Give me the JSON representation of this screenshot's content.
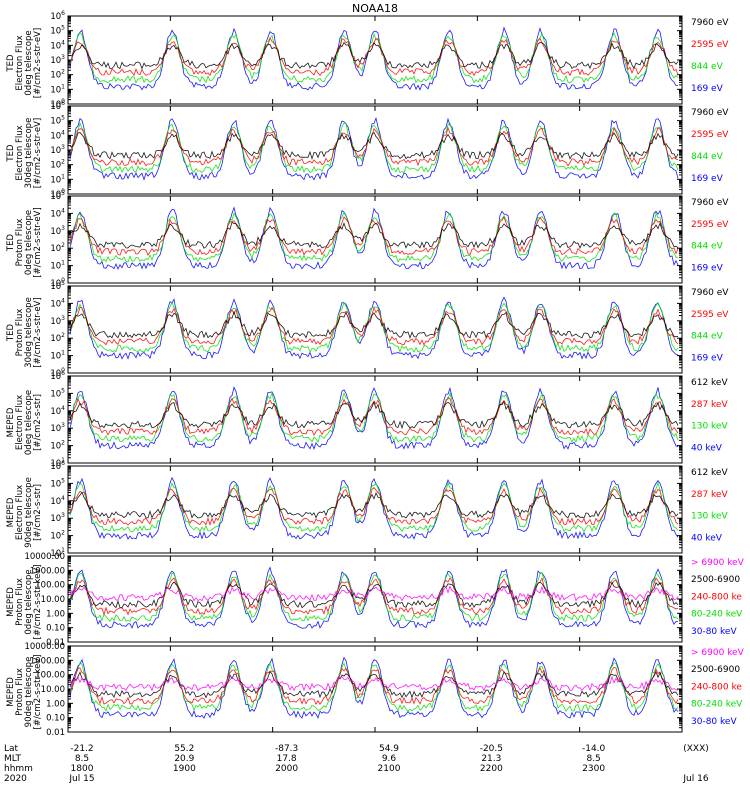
{
  "title": "NOAA18",
  "colors": {
    "blue": "#0000ff",
    "red": "#ff0000",
    "green": "#00e000",
    "black": "#000000",
    "magenta": "#ff00ff"
  },
  "chart_data": [
    {
      "type": "line",
      "ylabel": [
        "TED",
        "Electron Flux",
        "0deg telescope",
        "[#/cm2-s-str-eV]"
      ],
      "log": true,
      "ticks": [
        "10^0",
        "10^1",
        "10^2",
        "10^3",
        "10^4",
        "10^5",
        "10^6"
      ],
      "legend": [
        {
          "label": "7960 eV",
          "color": "black"
        },
        {
          "label": "2595 eV",
          "color": "red"
        },
        {
          "label": "844 eV",
          "color": "green"
        },
        {
          "label": "169 eV",
          "color": "blue"
        }
      ]
    },
    {
      "type": "line",
      "ylabel": [
        "TED",
        "Electron Flux",
        "30deg telescope",
        "[#/cm2-s-str-eV]"
      ],
      "log": true,
      "ticks": [
        "10^0",
        "10^1",
        "10^2",
        "10^3",
        "10^4",
        "10^5",
        "10^6"
      ],
      "legend": [
        {
          "label": "7960 eV",
          "color": "black"
        },
        {
          "label": "2595 eV",
          "color": "red"
        },
        {
          "label": "844 eV",
          "color": "green"
        },
        {
          "label": "169 eV",
          "color": "blue"
        }
      ]
    },
    {
      "type": "line",
      "ylabel": [
        "TED",
        "Proton Flux",
        "0deg telescope",
        "[#/cm2-s-str-eV]"
      ],
      "log": true,
      "ticks": [
        "10^0",
        "10^1",
        "10^2",
        "10^3",
        "10^4",
        "10^5"
      ],
      "legend": [
        {
          "label": "7960 eV",
          "color": "black"
        },
        {
          "label": "2595 eV",
          "color": "red"
        },
        {
          "label": "844 eV",
          "color": "green"
        },
        {
          "label": "169 eV",
          "color": "blue"
        }
      ]
    },
    {
      "type": "line",
      "ylabel": [
        "TED",
        "Proton Flux",
        "30deg telescope",
        "[#/cm2-s-str-eV]"
      ],
      "log": true,
      "ticks": [
        "10^0",
        "10^1",
        "10^2",
        "10^3",
        "10^4",
        "10^5"
      ],
      "legend": [
        {
          "label": "7960 eV",
          "color": "black"
        },
        {
          "label": "2595 eV",
          "color": "red"
        },
        {
          "label": "844 eV",
          "color": "green"
        },
        {
          "label": "169 eV",
          "color": "blue"
        }
      ]
    },
    {
      "type": "line",
      "ylabel": [
        "MEPED",
        "Electron Flux",
        "0deg telescope",
        "[#/cm2-s-str]"
      ],
      "log": true,
      "ticks": [
        "10^1",
        "10^2",
        "10^3",
        "10^4",
        "10^5",
        "10^6"
      ],
      "legend": [
        {
          "label": "612 keV",
          "color": "black"
        },
        {
          "label": "287 keV",
          "color": "red"
        },
        {
          "label": "130 keV",
          "color": "green"
        },
        {
          "label": "40 keV",
          "color": "blue"
        }
      ]
    },
    {
      "type": "line",
      "ylabel": [
        "MEPED",
        "Electron Flux",
        "90deg telescope",
        "[#/cm2-s-str]"
      ],
      "log": true,
      "ticks": [
        "10^1",
        "10^2",
        "10^3",
        "10^4",
        "10^5",
        "10^6"
      ],
      "legend": [
        {
          "label": "612 keV",
          "color": "black"
        },
        {
          "label": "287 keV",
          "color": "red"
        },
        {
          "label": "130 keV",
          "color": "green"
        },
        {
          "label": "40 keV",
          "color": "blue"
        }
      ]
    },
    {
      "type": "line",
      "ylabel": [
        "MEPED",
        "Proton Flux",
        "0deg telescope",
        "[#/cm2-s-str-keV]"
      ],
      "log": true,
      "ticks": [
        "0.01",
        "0.10",
        "1.00",
        "10.00",
        "100.00",
        "1000.00",
        "10000.00"
      ],
      "legend": [
        {
          "label": "> 6900 keV",
          "color": "magenta"
        },
        {
          "label": "2500-6900",
          "color": "black"
        },
        {
          "label": "240-800 ke",
          "color": "red"
        },
        {
          "label": "80-240 keV",
          "color": "green"
        },
        {
          "label": "30-80 keV",
          "color": "blue"
        }
      ]
    },
    {
      "type": "line",
      "ylabel": [
        "MEPED",
        "Proton Flux",
        "90deg telescope",
        "[#/cm2-s-str-keV]"
      ],
      "log": true,
      "ticks": [
        "0.01",
        "0.10",
        "1.00",
        "10.00",
        "100.00",
        "1000.00",
        "10000.00"
      ],
      "legend": [
        {
          "label": "> 6900 keV",
          "color": "magenta"
        },
        {
          "label": "2500-6900",
          "color": "black"
        },
        {
          "label": "240-800 ke",
          "color": "red"
        },
        {
          "label": "80-240 keV",
          "color": "green"
        },
        {
          "label": "30-80 keV",
          "color": "blue"
        }
      ]
    }
  ],
  "xaxis": {
    "row_labels": [
      "Lat",
      "MLT",
      "hhmm",
      "2020"
    ],
    "columns": [
      {
        "t": 0.0,
        "lines": [
          "-21.2",
          "8.5",
          "1800",
          "Jul 15"
        ]
      },
      {
        "t": 0.1667,
        "lines": [
          "55.2",
          "20.9",
          "1900",
          ""
        ]
      },
      {
        "t": 0.3333,
        "lines": [
          "-87.3",
          "17.8",
          "2000",
          ""
        ]
      },
      {
        "t": 0.5,
        "lines": [
          "54.9",
          "9.6",
          "2100",
          ""
        ]
      },
      {
        "t": 0.6667,
        "lines": [
          "-20.5",
          "21.3",
          "2200",
          ""
        ]
      },
      {
        "t": 0.8333,
        "lines": [
          "-14.0",
          "8.5",
          "2300",
          ""
        ]
      },
      {
        "t": 1.0,
        "lines": [
          "(XXX)",
          "",
          "",
          "Jul 16"
        ]
      }
    ]
  }
}
